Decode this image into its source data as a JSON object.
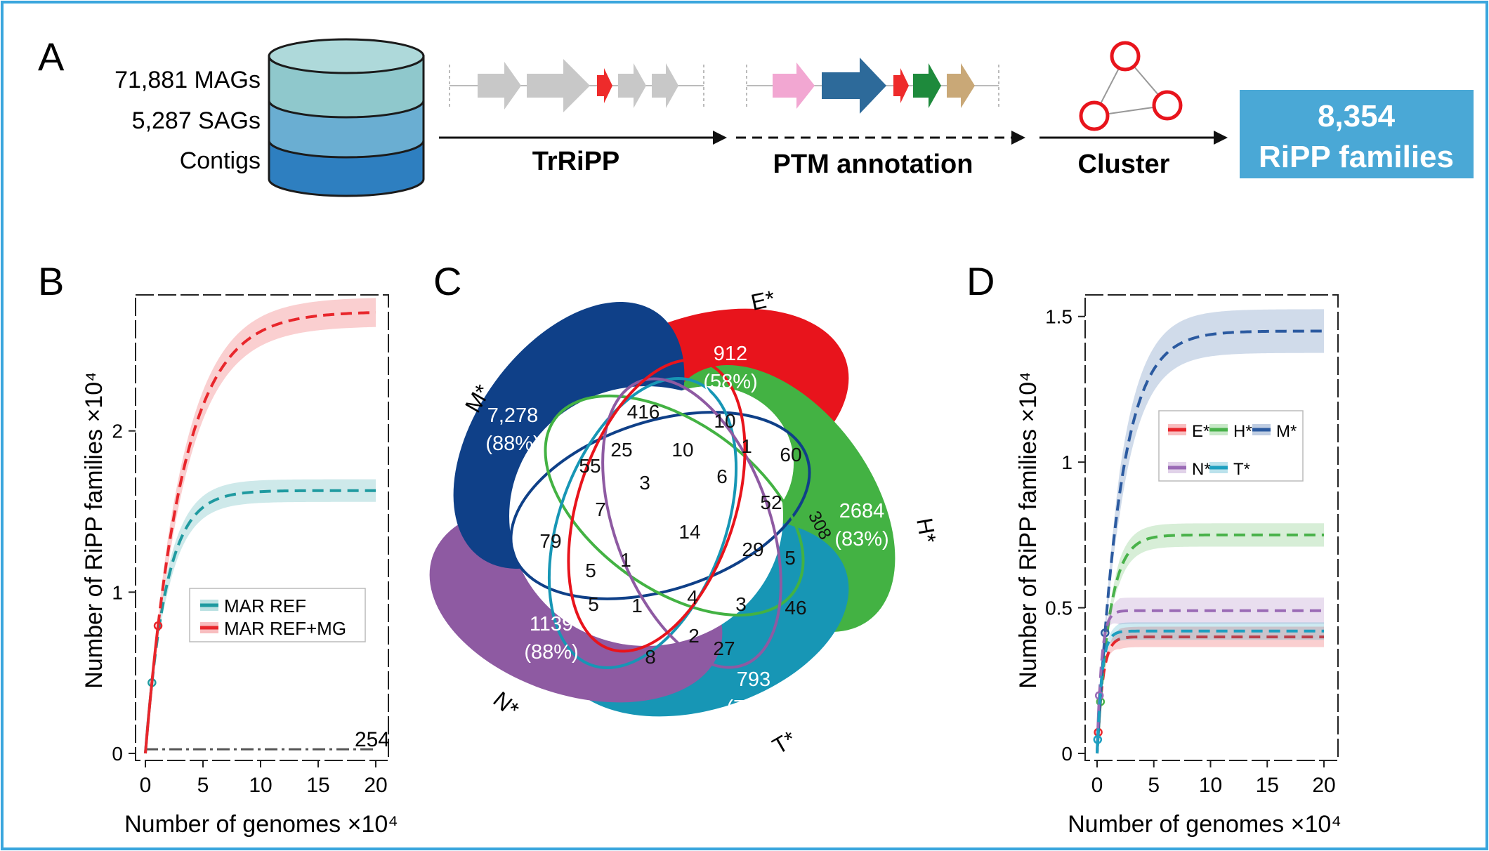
{
  "panelA": {
    "letter": "A",
    "db_labels": [
      "71,881 MAGs",
      "5,287 SAGs",
      "Contigs"
    ],
    "step1": "TrRiPP",
    "step2": "PTM annotation",
    "step3": "Cluster",
    "result_line1": "8,354",
    "result_line2": "RiPP families",
    "colors": {
      "db_top": "#a8d5d7",
      "db_mid": "#6aaed2",
      "db_bottom": "#2e7fc0",
      "gene_gray": "#c8c8c8",
      "gene_red": "#ee2b2b",
      "gene_pink": "#f2a7d2",
      "gene_blue": "#2d6a9a",
      "gene_green": "#1e8a3c",
      "gene_tan": "#c9a877",
      "cluster_red": "#e8141c",
      "result_box": "#4aa8d6"
    }
  },
  "panelB": {
    "letter": "B",
    "annotation": "254",
    "chart_data": {
      "type": "line",
      "xlabel": "Number of genomes ×10⁴",
      "ylabel": "Number of RiPP families ×10⁴",
      "xlim": [
        0,
        20
      ],
      "ylim": [
        0,
        2.8
      ],
      "xticks": [
        "0",
        "5",
        "10",
        "15",
        "20"
      ],
      "yticks": [
        "0",
        "1",
        "2"
      ],
      "legend_position": "center-right",
      "series": [
        {
          "name": "MAR REF",
          "color": "#1f9aa0",
          "plateau": 1.63,
          "rate": 0.55,
          "band": 0.07,
          "x_obs": 0.57,
          "end_obs": 0.57,
          "label": "MAR REF"
        },
        {
          "name": "MAR REF+MG",
          "color": "#e8262b",
          "plateau": 2.74,
          "rate": 0.31,
          "band": 0.09,
          "x_obs": 1.1,
          "end_obs": 1.0,
          "label": "MAR REF+MG"
        }
      ],
      "baseline": {
        "value": 0.0254,
        "label": "254"
      }
    }
  },
  "panelC": {
    "letter": "C",
    "set_labels": [
      "E*",
      "H*",
      "T*",
      "N*",
      "M*"
    ],
    "unique": [
      {
        "count": "912",
        "pct": "(58%)"
      },
      {
        "count": "2684",
        "pct": "(83%)"
      },
      {
        "count": "793",
        "pct": "(78%)"
      },
      {
        "count": "1139",
        "pct": "(88%)"
      },
      {
        "count": "7,278",
        "pct": "(88%)"
      }
    ],
    "intersections": [
      "416",
      "10",
      "1",
      "60",
      "25",
      "55",
      "10",
      "6",
      "3",
      "52",
      "308",
      "7",
      "14",
      "29",
      "79",
      "5",
      "1",
      "5",
      "5",
      "1",
      "4",
      "3",
      "46",
      "2",
      "27",
      "8"
    ],
    "colors": {
      "E": "#e8141c",
      "H": "#43b243",
      "T": "#1796b5",
      "N": "#8e5aa2",
      "M": "#0f4088"
    }
  },
  "panelD": {
    "letter": "D",
    "chart_data": {
      "type": "line",
      "xlabel": "Number of genomes ×10⁴",
      "ylabel": "Number of RiPP families ×10⁴",
      "xlim": [
        0,
        20
      ],
      "ylim": [
        0,
        1.55
      ],
      "xticks": [
        "0",
        "5",
        "10",
        "15",
        "20"
      ],
      "yticks": [
        "0",
        "0.5",
        "1",
        "1.5"
      ],
      "legend_position": "upper-right",
      "series": [
        {
          "name": "E*",
          "color": "#e8262b",
          "plateau": 0.4,
          "rate": 2.0,
          "band": 0.035,
          "x_obs": 0.1,
          "end_obs": 0.12
        },
        {
          "name": "H*",
          "color": "#49b24a",
          "plateau": 0.75,
          "rate": 0.9,
          "band": 0.04,
          "x_obs": 0.3,
          "end_obs": 0.32
        },
        {
          "name": "M*",
          "color": "#2b5aa0",
          "plateau": 1.45,
          "rate": 0.48,
          "band": 0.075,
          "x_obs": 0.7,
          "end_obs": 0.48
        },
        {
          "name": "N*",
          "color": "#9a6ab5",
          "plateau": 0.49,
          "rate": 2.6,
          "band": 0.045,
          "x_obs": 0.2,
          "end_obs": 0.15
        },
        {
          "name": "T*",
          "color": "#1d9fc0",
          "plateau": 0.42,
          "rate": 2.4,
          "band": 0.03,
          "x_obs": 0.05,
          "end_obs": 0.1
        }
      ]
    }
  }
}
